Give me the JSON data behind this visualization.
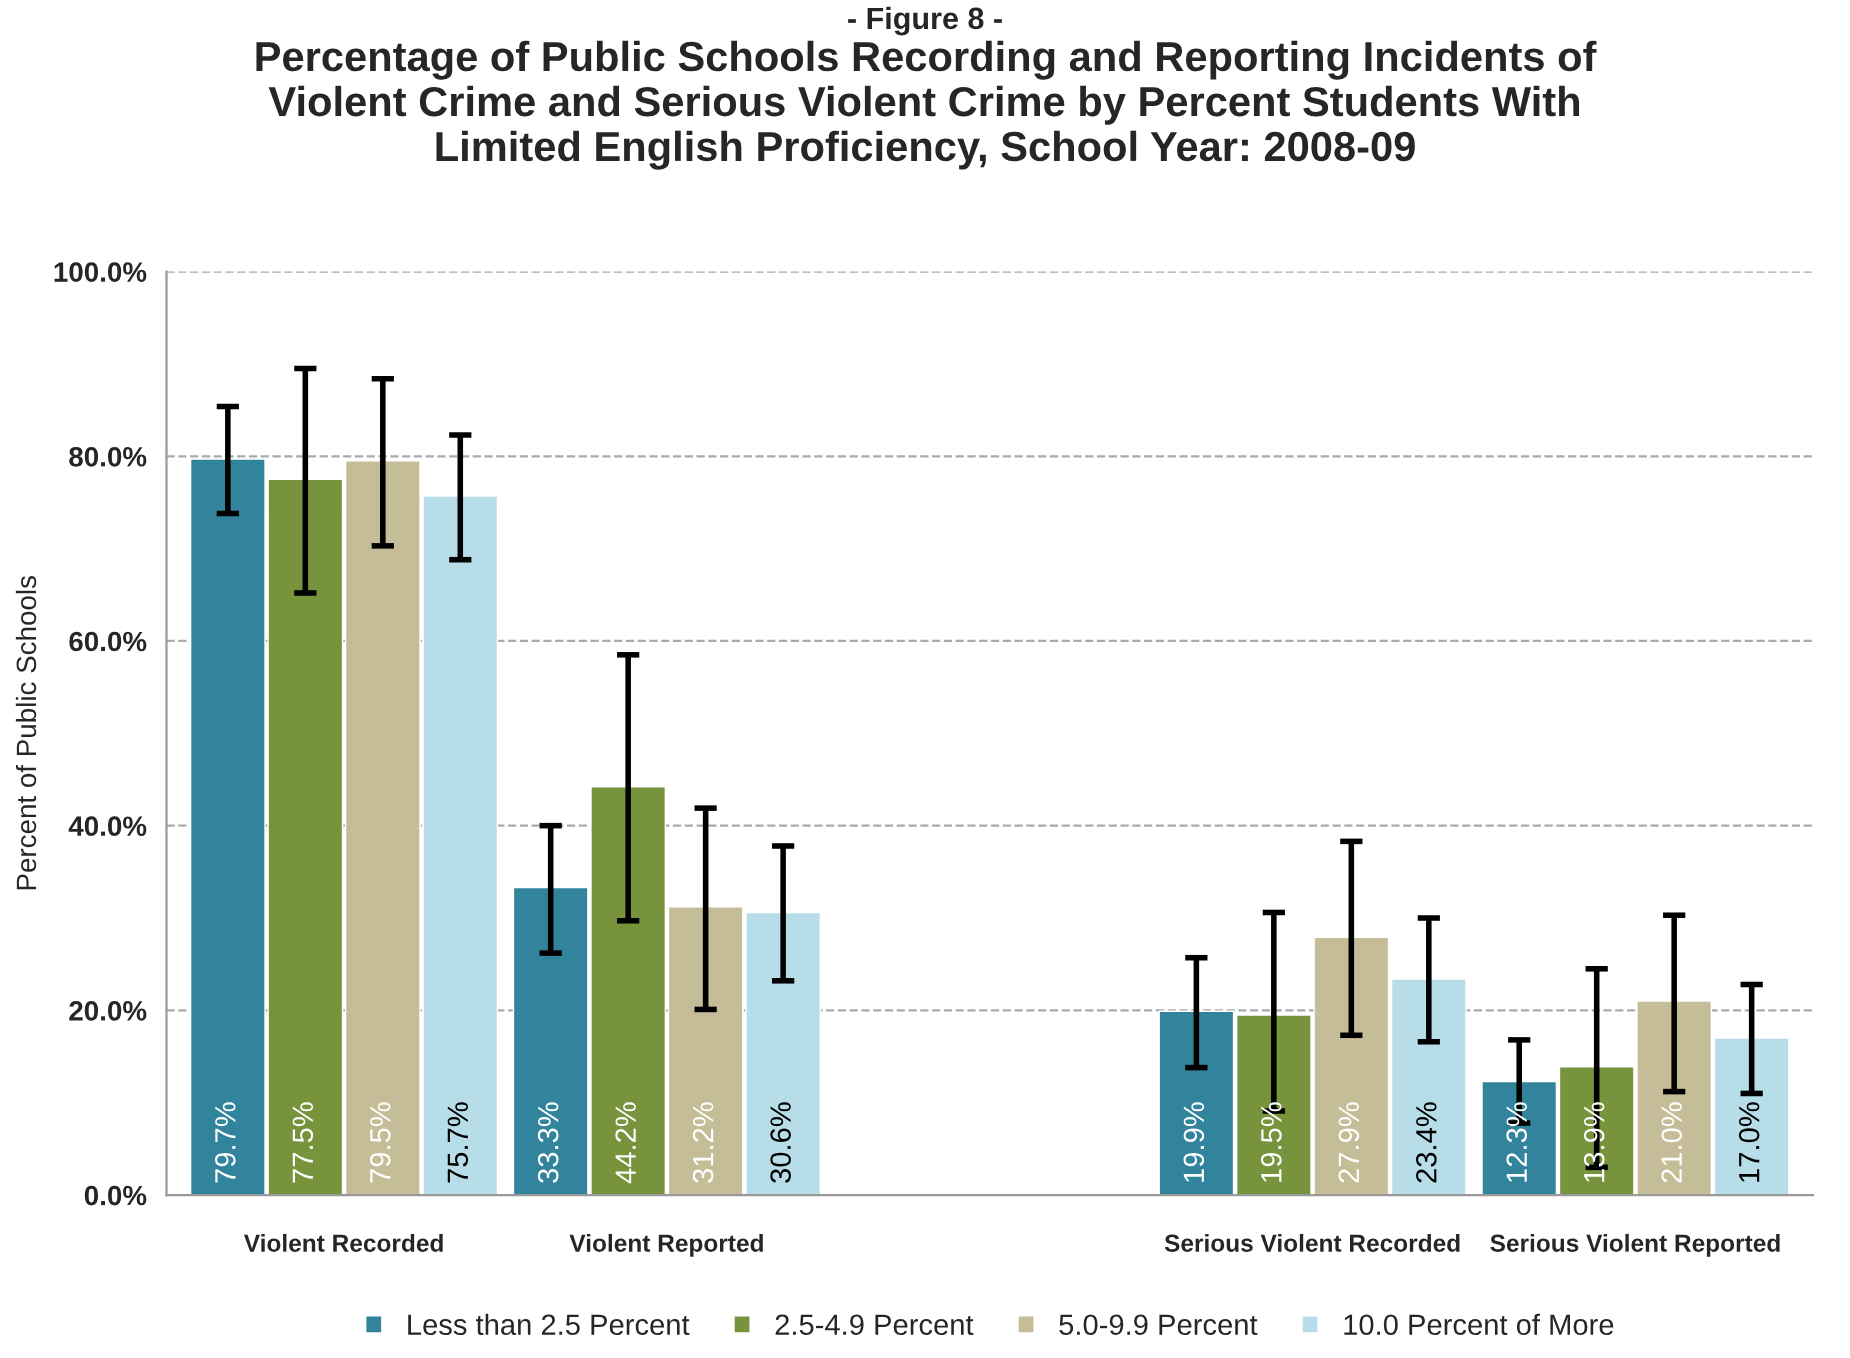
{
  "chart_data": {
    "type": "bar",
    "title": "Percentage of Public Schools Recording and Reporting Incidents of\nViolent Crime and Serious Violent Crime by Percent Students With\nLimited English Proficiency, School Year: 2008-09",
    "annotations": [
      "- Figure 8 -"
    ],
    "ylabel": "Percent of Public Schools",
    "categories": [
      "Violent Recorded",
      "Violent Reported",
      null,
      "Serious Violent Recorded",
      "Serious Violent Reported"
    ],
    "series": [
      {
        "name": "Less than 2.5 Percent",
        "color": "#31849b",
        "values": [
          79.7,
          33.3,
          null,
          19.9,
          12.3
        ],
        "value_labels": [
          "79.7%",
          "33.3%",
          null,
          "19.9%",
          "12.3%"
        ],
        "errors": [
          [
            73.8,
            85.4
          ],
          [
            26.2,
            40.0
          ],
          null,
          [
            13.8,
            25.7
          ],
          [
            7.8,
            16.8
          ]
        ]
      },
      {
        "name": "2.5-4.9 Percent",
        "color": "#77933c",
        "values": [
          77.5,
          44.2,
          null,
          19.5,
          13.9
        ],
        "value_labels": [
          "77.5%",
          "44.2%",
          null,
          "19.5%",
          "13.9%"
        ],
        "errors": [
          [
            65.2,
            89.5
          ],
          [
            29.7,
            58.5
          ],
          null,
          [
            9.1,
            30.6
          ],
          [
            3.0,
            24.5
          ]
        ]
      },
      {
        "name": "5.0-9.9 Percent",
        "color": "#c4bd97",
        "values": [
          79.5,
          31.2,
          null,
          27.9,
          21.0
        ],
        "value_labels": [
          "79.5%",
          "31.2%",
          null,
          "27.9%",
          "21.0%"
        ],
        "errors": [
          [
            70.3,
            88.4
          ],
          [
            20.1,
            41.9
          ],
          null,
          [
            17.3,
            38.3
          ],
          [
            11.2,
            30.3
          ]
        ]
      },
      {
        "name": "10.0 Percent of More",
        "color": "#b7dee8",
        "values": [
          75.7,
          30.6,
          null,
          23.4,
          17.0
        ],
        "value_labels": [
          "75.7%",
          "30.6%",
          null,
          "23.4%",
          "17.0%"
        ],
        "errors": [
          [
            68.8,
            82.3
          ],
          [
            23.2,
            37.8
          ],
          null,
          [
            16.6,
            30.0
          ],
          [
            11.0,
            22.8
          ]
        ]
      }
    ],
    "ylim": [
      0,
      100
    ],
    "yticks": [
      {
        "value": 0,
        "label": "0.0%"
      },
      {
        "value": 20,
        "label": "20.0%"
      },
      {
        "value": 40,
        "label": "40.0%"
      },
      {
        "value": 60,
        "label": "60.0%"
      },
      {
        "value": 80,
        "label": "80.0%"
      },
      {
        "value": 100,
        "label": "100.0%"
      }
    ],
    "grid": "y",
    "legend": "bottom"
  }
}
